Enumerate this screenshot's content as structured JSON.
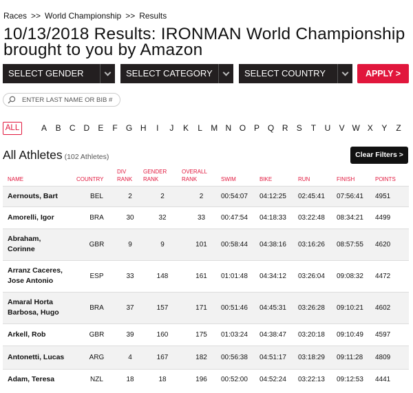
{
  "breadcrumb": {
    "items": [
      "Races",
      "World Championship",
      "Results"
    ],
    "separator": ">>"
  },
  "page_title": "10/13/2018 Results: IRONMAN World Championship brought to you by Amazon",
  "filters": {
    "gender": "SELECT GENDER",
    "category": "SELECT CATEGORY",
    "country": "SELECT COUNTRY",
    "apply": "APPLY >"
  },
  "search": {
    "placeholder": "ENTER LAST NAME OR BIB #",
    "value": ""
  },
  "alphabet": {
    "all": "ALL",
    "letters": [
      "A",
      "B",
      "C",
      "D",
      "E",
      "F",
      "G",
      "H",
      "I",
      "J",
      "K",
      "L",
      "M",
      "N",
      "O",
      "P",
      "Q",
      "R",
      "S",
      "T",
      "U",
      "V",
      "W",
      "X",
      "Y",
      "Z"
    ]
  },
  "athletes": {
    "title": "All Athletes",
    "count": "(102 Athletes)",
    "clear": "Clear Filters >"
  },
  "table": {
    "headers": {
      "name": "NAME",
      "country": "COUNTRY",
      "div_rank": [
        "DIV",
        "RANK"
      ],
      "gender_rank": [
        "GENDER",
        "RANK"
      ],
      "overall_rank": [
        "OVERALL",
        "RANK"
      ],
      "swim": "SWIM",
      "bike": "BIKE",
      "run": "RUN",
      "finish": "FINISH",
      "points": "POINTS"
    },
    "rows": [
      {
        "name": [
          "Aernouts, Bart"
        ],
        "country": "BEL",
        "div": "2",
        "gender": "2",
        "overall": "2",
        "swim": "00:54:07",
        "bike": "04:12:25",
        "run": "02:45:41",
        "finish": "07:56:41",
        "points": "4951"
      },
      {
        "name": [
          "Amorelli, Igor"
        ],
        "country": "BRA",
        "div": "30",
        "gender": "32",
        "overall": "33",
        "swim": "00:47:54",
        "bike": "04:18:33",
        "run": "03:22:48",
        "finish": "08:34:21",
        "points": "4499"
      },
      {
        "name": [
          "Abraham,",
          "Corinne"
        ],
        "country": "GBR",
        "div": "9",
        "gender": "9",
        "overall": "101",
        "swim": "00:58:44",
        "bike": "04:38:16",
        "run": "03:16:26",
        "finish": "08:57:55",
        "points": "4620"
      },
      {
        "name": [
          "Arranz Caceres,",
          "Jose Antonio"
        ],
        "country": "ESP",
        "div": "33",
        "gender": "148",
        "overall": "161",
        "swim": "01:01:48",
        "bike": "04:34:12",
        "run": "03:26:04",
        "finish": "09:08:32",
        "points": "4472"
      },
      {
        "name": [
          "Amaral Horta",
          "Barbosa, Hugo"
        ],
        "country": "BRA",
        "div": "37",
        "gender": "157",
        "overall": "171",
        "swim": "00:51:46",
        "bike": "04:45:31",
        "run": "03:26:28",
        "finish": "09:10:21",
        "points": "4602"
      },
      {
        "name": [
          "Arkell, Rob"
        ],
        "country": "GBR",
        "div": "39",
        "gender": "160",
        "overall": "175",
        "swim": "01:03:24",
        "bike": "04:38:47",
        "run": "03:20:18",
        "finish": "09:10:49",
        "points": "4597"
      },
      {
        "name": [
          "Antonetti, Lucas"
        ],
        "country": "ARG",
        "div": "4",
        "gender": "167",
        "overall": "182",
        "swim": "00:56:38",
        "bike": "04:51:17",
        "run": "03:18:29",
        "finish": "09:11:28",
        "points": "4809"
      },
      {
        "name": [
          "Adam, Teresa"
        ],
        "country": "NZL",
        "div": "18",
        "gender": "18",
        "overall": "196",
        "swim": "00:52:00",
        "bike": "04:52:24",
        "run": "03:22:13",
        "finish": "09:12:53",
        "points": "4441"
      }
    ]
  },
  "colors": {
    "accent": "#e1163c",
    "dark": "#231f20",
    "row_alt": "#f2f2f2"
  },
  "icons": {
    "search": "search-icon",
    "dropdown": "chevron-down-icon"
  }
}
